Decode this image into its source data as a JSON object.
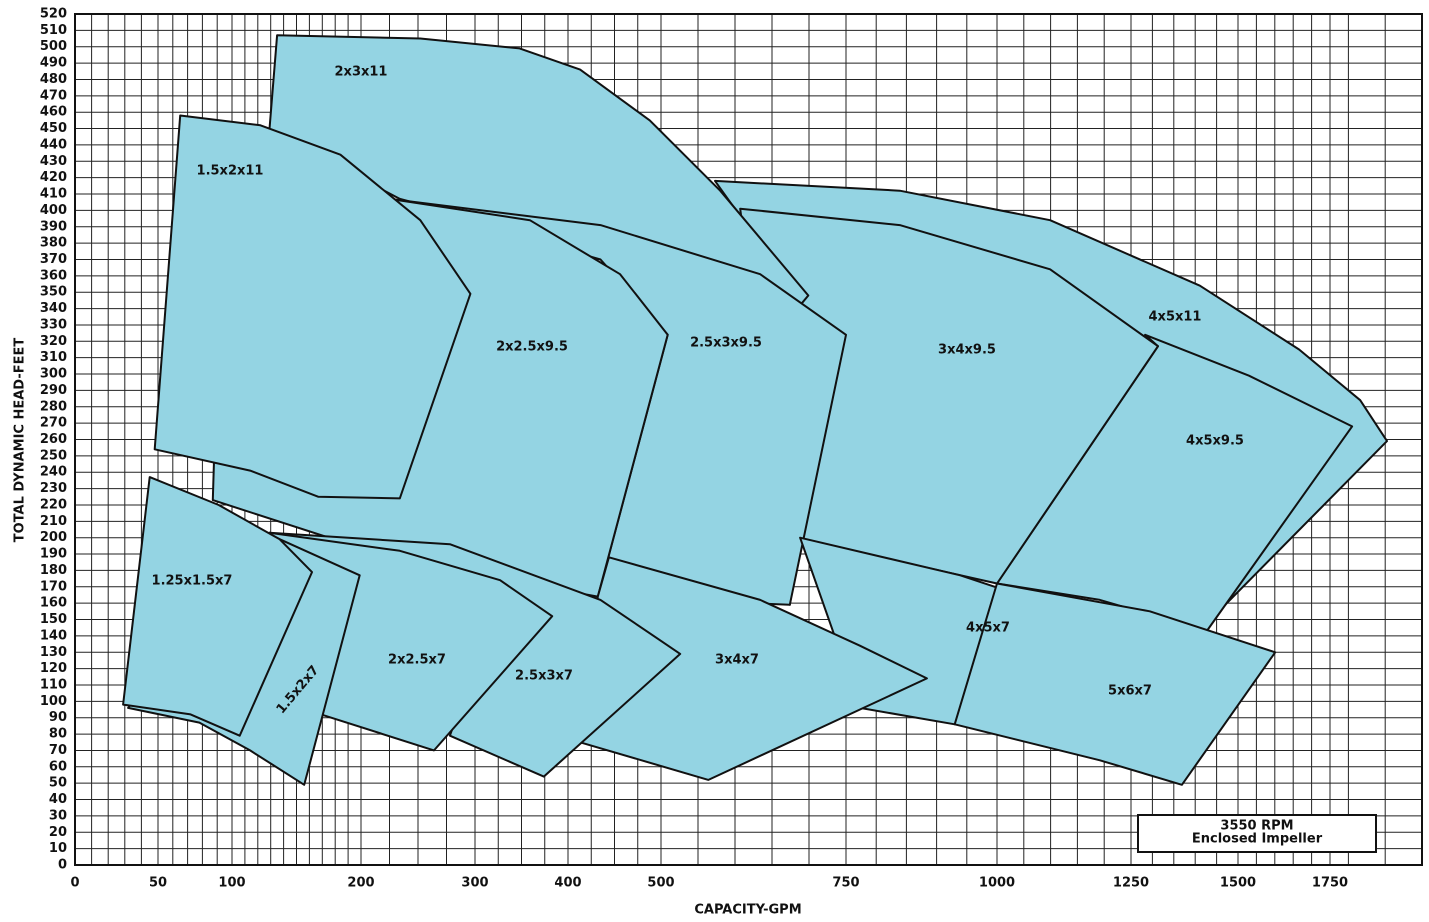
{
  "chart_data": {
    "type": "coverage",
    "x_label": "CAPACITY-GPM",
    "y_label": "TOTAL DYNAMIC HEAD-FEET",
    "annotation": [
      "3550 RPM",
      "Enclosed Impeller"
    ],
    "region_color": "#94d4e3",
    "grid": true,
    "xlim": [
      0,
      2000
    ],
    "ylim": [
      0,
      520
    ],
    "xticks": [
      0,
      50,
      100,
      200,
      300,
      400,
      500,
      750,
      1000,
      1250,
      1500,
      1750
    ],
    "x_grid": [
      10,
      20,
      30,
      40,
      60,
      70,
      80,
      90,
      110,
      120,
      130,
      140,
      150,
      160,
      170,
      180,
      190,
      225,
      250,
      275,
      325,
      350,
      375,
      425,
      450,
      475,
      550,
      600,
      650,
      700,
      800,
      850,
      900,
      950,
      1050,
      1100,
      1150,
      1200,
      1300,
      1350,
      1400,
      1450,
      1550,
      1600,
      1650,
      1700,
      1800,
      1900,
      2000
    ],
    "yticks": [
      0,
      10,
      20,
      30,
      40,
      50,
      60,
      70,
      80,
      90,
      100,
      110,
      120,
      130,
      140,
      150,
      160,
      170,
      180,
      190,
      200,
      210,
      220,
      230,
      240,
      250,
      260,
      270,
      280,
      290,
      300,
      310,
      320,
      330,
      340,
      350,
      360,
      370,
      380,
      390,
      400,
      410,
      420,
      430,
      440,
      450,
      460,
      470,
      480,
      490,
      500,
      510,
      520
    ],
    "series": [
      {
        "name": "4x5x11",
        "x": [
          573,
          839,
          1099,
          1411,
          1666,
          1832,
          1905,
          1470,
          1006
        ],
        "values": [
          418,
          412,
          394,
          354,
          315,
          284,
          259,
          159,
          174
        ]
      },
      {
        "name": "4x5x9.5",
        "x": [
          1000,
          1313,
          1283,
          1530,
          1810,
          1427,
          1192
        ],
        "values": [
          172,
          317,
          324,
          299,
          268,
          143,
          162
        ]
      },
      {
        "name": "3x4x9.5",
        "x": [
          607,
          839,
          1099,
          1313,
          1000,
          688,
          674
        ],
        "values": [
          401,
          391,
          364,
          317,
          172,
          199,
          159
        ]
      },
      {
        "name": "2x3x11",
        "x": [
          135,
          252,
          348,
          413,
          488,
          580,
          699,
          688,
          234,
          129
        ],
        "values": [
          507,
          505,
          499,
          486,
          455,
          412,
          348,
          342,
          407,
          449
        ]
      },
      {
        "name": "2.5x3x9.5",
        "x": [
          225,
          435,
          634,
          750,
          674,
          432,
          509,
          435
        ],
        "values": [
          407,
          391,
          361,
          324,
          159,
          164,
          324,
          370
        ]
      },
      {
        "name": "2x2.5x9.5",
        "x": [
          225,
          359,
          456,
          509,
          432,
          234,
          87,
          88,
          153
        ],
        "values": [
          407,
          394,
          361,
          324,
          164,
          186,
          223,
          251,
          284
        ]
      },
      {
        "name": "1.5x2x11",
        "x": [
          65,
          122,
          184,
          252,
          296,
          234,
          167,
          114,
          48
        ],
        "values": [
          458,
          452,
          434,
          394,
          349,
          224,
          225,
          241,
          254
        ]
      },
      {
        "name": "4x5x7",
        "x": [
          688,
          939,
          1264,
          930,
          773
        ],
        "values": [
          200,
          177,
          141,
          86,
          96
        ]
      },
      {
        "name": "5x6x7",
        "x": [
          1000,
          1294,
          1601,
          1369,
          1192,
          930
        ],
        "values": [
          172,
          155,
          130,
          49,
          64,
          86
        ]
      },
      {
        "name": "3x4x7",
        "x": [
          444,
          634,
          773,
          884,
          564,
          413,
          432
        ],
        "values": [
          188,
          162,
          134,
          114,
          52,
          75,
          164
        ]
      },
      {
        "name": "2.5x3x7",
        "x": [
          129,
          278,
          435,
          526,
          374,
          278,
          305
        ],
        "values": [
          203,
          196,
          162,
          129,
          54,
          79,
          131
        ]
      },
      {
        "name": "2x2.5x7",
        "x": [
          129,
          234,
          327,
          383,
          264,
          169,
          176
        ],
        "values": [
          203,
          192,
          174,
          152,
          70,
          92,
          113
        ]
      },
      {
        "name": "1.5x2x7",
        "x": [
          126,
          199,
          156,
          114,
          78,
          32
        ],
        "values": [
          203,
          177,
          49,
          70,
          87,
          96
        ]
      },
      {
        "name": "1.25x1.5x7",
        "x": [
          45,
          91,
          137,
          162,
          106,
          72,
          29
        ],
        "values": [
          237,
          220,
          199,
          179,
          79,
          92,
          98
        ]
      }
    ]
  }
}
